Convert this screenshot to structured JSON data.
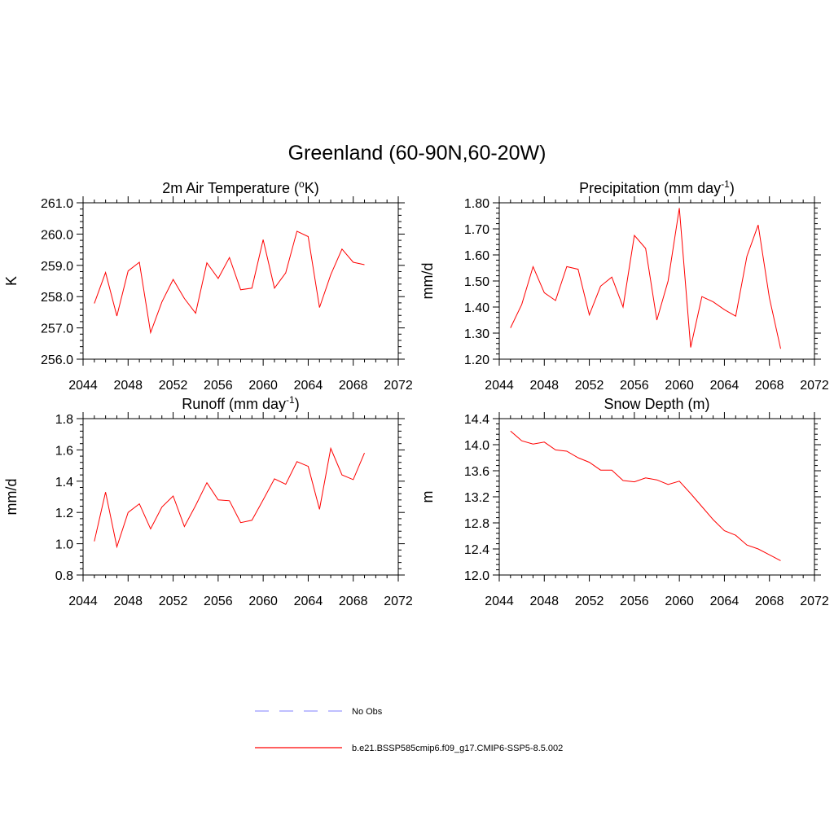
{
  "title": "Greenland (60-90N,60-20W)",
  "legend": {
    "placement": "bottom-center",
    "entries": [
      {
        "label": "No Obs",
        "color": "#9999ff",
        "style": "dashed"
      },
      {
        "label": "b.e21.BSSP585cmip6.f09_g17.CMIP6-SSP5-8.5.002",
        "color": "#ff0000",
        "style": "solid"
      }
    ]
  },
  "chart_data": [
    {
      "type": "line",
      "title": "2m Air Temperature (",
      "title_sup": "o",
      "title_after": "K)",
      "ylabel": "K",
      "xlabel": "",
      "xlim": [
        2044,
        2072
      ],
      "ylim": [
        256.0,
        261.0
      ],
      "xticks": [
        2044,
        2048,
        2052,
        2056,
        2060,
        2064,
        2068,
        2072
      ],
      "yticks": [
        "256.0",
        "257.0",
        "258.0",
        "259.0",
        "260.0",
        "261.0"
      ],
      "grid": false,
      "series": [
        {
          "color": "#ff0000",
          "x": [
            2045,
            2046,
            2047,
            2048,
            2049,
            2050,
            2051,
            2052,
            2053,
            2054,
            2055,
            2056,
            2057,
            2058,
            2059,
            2060,
            2061,
            2062,
            2063,
            2064,
            2065,
            2066,
            2067,
            2068,
            2069
          ],
          "y": [
            257.78,
            258.77,
            257.38,
            258.82,
            259.1,
            256.85,
            257.83,
            258.55,
            257.94,
            257.47,
            259.08,
            258.58,
            259.25,
            258.22,
            258.27,
            259.82,
            258.27,
            258.76,
            260.09,
            259.92,
            257.65,
            258.7,
            259.52,
            259.1,
            259.02
          ]
        }
      ]
    },
    {
      "type": "line",
      "title": "Precipitation (mm day",
      "title_sup": "-1",
      "title_after": ")",
      "ylabel": "mm/d",
      "xlabel": "",
      "xlim": [
        2044,
        2072
      ],
      "ylim": [
        1.2,
        1.8
      ],
      "xticks": [
        2044,
        2048,
        2052,
        2056,
        2060,
        2064,
        2068,
        2072
      ],
      "yticks": [
        "1.20",
        "1.30",
        "1.40",
        "1.50",
        "1.60",
        "1.70",
        "1.80"
      ],
      "grid": false,
      "series": [
        {
          "color": "#ff0000",
          "x": [
            2045,
            2046,
            2047,
            2048,
            2049,
            2050,
            2051,
            2052,
            2053,
            2054,
            2055,
            2056,
            2057,
            2058,
            2059,
            2060,
            2061,
            2062,
            2063,
            2064,
            2065,
            2066,
            2067,
            2068,
            2069
          ],
          "y": [
            1.32,
            1.41,
            1.555,
            1.455,
            1.425,
            1.555,
            1.545,
            1.37,
            1.48,
            1.515,
            1.4,
            1.675,
            1.625,
            1.35,
            1.5,
            1.78,
            1.245,
            1.44,
            1.42,
            1.39,
            1.365,
            1.595,
            1.715,
            1.435,
            1.24
          ]
        }
      ]
    },
    {
      "type": "line",
      "title": "Runoff (mm day",
      "title_sup": "-1",
      "title_after": ")",
      "ylabel": "mm/d",
      "xlabel": "",
      "xlim": [
        2044,
        2072
      ],
      "ylim": [
        0.8,
        1.8
      ],
      "xticks": [
        2044,
        2048,
        2052,
        2056,
        2060,
        2064,
        2068,
        2072
      ],
      "yticks": [
        "0.8",
        "1.0",
        "1.2",
        "1.4",
        "1.6",
        "1.8"
      ],
      "grid": false,
      "series": [
        {
          "color": "#ff0000",
          "x": [
            2045,
            2046,
            2047,
            2048,
            2049,
            2050,
            2051,
            2052,
            2053,
            2054,
            2055,
            2056,
            2057,
            2058,
            2059,
            2060,
            2061,
            2062,
            2063,
            2064,
            2065,
            2066,
            2067,
            2068,
            2069
          ],
          "y": [
            1.015,
            1.33,
            0.98,
            1.2,
            1.255,
            1.095,
            1.235,
            1.305,
            1.11,
            1.245,
            1.39,
            1.28,
            1.275,
            1.135,
            1.15,
            1.28,
            1.415,
            1.38,
            1.525,
            1.495,
            1.22,
            1.61,
            1.44,
            1.41,
            1.58
          ]
        }
      ]
    },
    {
      "type": "line",
      "title": "Snow Depth (m)",
      "title_sup": "",
      "title_after": "",
      "ylabel": "m",
      "xlabel": "",
      "xlim": [
        2044,
        2072
      ],
      "ylim": [
        12.0,
        14.4
      ],
      "xticks": [
        2044,
        2048,
        2052,
        2056,
        2060,
        2064,
        2068,
        2072
      ],
      "yticks": [
        "12.0",
        "12.4",
        "12.8",
        "13.2",
        "13.6",
        "14.0",
        "14.4"
      ],
      "grid": false,
      "series": [
        {
          "color": "#ff0000",
          "x": [
            2045,
            2046,
            2047,
            2048,
            2049,
            2050,
            2051,
            2052,
            2053,
            2054,
            2055,
            2056,
            2057,
            2058,
            2059,
            2060,
            2061,
            2062,
            2063,
            2064,
            2065,
            2066,
            2067,
            2068,
            2069
          ],
          "y": [
            14.21,
            14.06,
            14.01,
            14.04,
            13.92,
            13.9,
            13.8,
            13.73,
            13.61,
            13.61,
            13.45,
            13.43,
            13.49,
            13.46,
            13.39,
            13.44,
            13.25,
            13.05,
            12.85,
            12.68,
            12.61,
            12.46,
            12.4,
            12.31,
            12.22
          ]
        }
      ]
    }
  ]
}
